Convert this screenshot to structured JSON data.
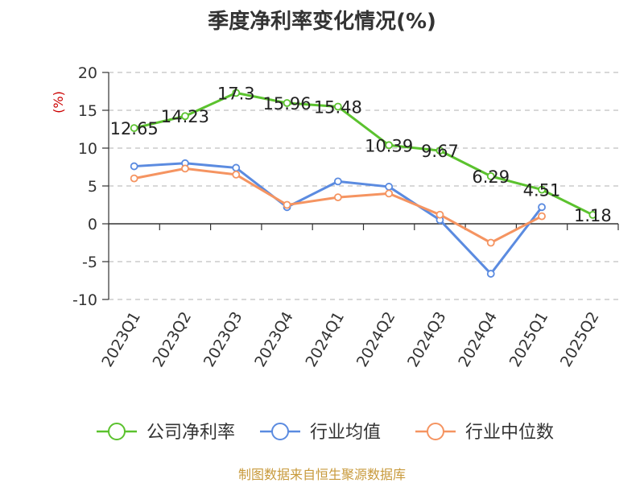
{
  "chart_data": {
    "type": "line",
    "title": "季度净利率变化情况(%)",
    "ylabel": "(%)",
    "categories": [
      "2023Q1",
      "2023Q2",
      "2023Q3",
      "2023Q4",
      "2024Q1",
      "2024Q2",
      "2024Q3",
      "2024Q4",
      "2025Q1",
      "2025Q2"
    ],
    "ylim": [
      -10,
      20
    ],
    "yticks": [
      -10,
      -5,
      0,
      5,
      10,
      15,
      20
    ],
    "grid": true,
    "legend_position": "bottom",
    "series": [
      {
        "name": "公司净利率",
        "color": "#5bc22e",
        "values": [
          12.65,
          14.23,
          17.3,
          15.96,
          15.48,
          10.39,
          9.67,
          6.29,
          4.51,
          1.18
        ],
        "labels": [
          "12.65",
          "14.23",
          "17.3",
          "15.96",
          "15.48",
          "10.39",
          "9.67",
          "6.29",
          "4.51",
          "1.18"
        ]
      },
      {
        "name": "行业均值",
        "color": "#5b8be0",
        "values": [
          7.6,
          8.0,
          7.4,
          2.2,
          5.6,
          4.9,
          0.5,
          -6.6,
          2.2,
          null
        ]
      },
      {
        "name": "行业中位数",
        "color": "#f59461",
        "values": [
          6.0,
          7.3,
          6.5,
          2.5,
          3.5,
          4.0,
          1.2,
          -2.5,
          1.0,
          null
        ]
      }
    ]
  },
  "source_text": "制图数据来自恒生聚源数据库"
}
